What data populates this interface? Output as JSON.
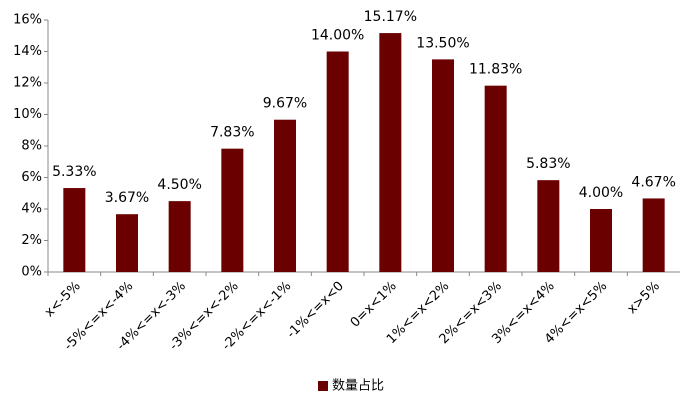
{
  "chart_data": {
    "type": "bar",
    "categories": [
      "x<-5%",
      "-5%<=x<-4%",
      "-4%<=x<-3%",
      "-3%<=x<-2%",
      "-2%<=x<-1%",
      "-1%<=x<0",
      "0=x<1%",
      "1%<=x<2%",
      "2%<=x<3%",
      "3%<=x<4%",
      "4%<=x<5%",
      "x>5%"
    ],
    "series": [
      {
        "name": "数量占比",
        "color": "#6b0000",
        "values": [
          5.33,
          3.67,
          4.5,
          7.83,
          9.67,
          14.0,
          15.17,
          13.5,
          11.83,
          5.83,
          4.0,
          4.67
        ],
        "value_labels": [
          "5.33%",
          "3.67%",
          "4.50%",
          "7.83%",
          "9.67%",
          "14.00%",
          "15.17%",
          "13.50%",
          "11.83%",
          "5.83%",
          "4.00%",
          "4.67%"
        ]
      }
    ],
    "ylim": [
      0,
      16
    ],
    "yticks": [
      {
        "value": 0,
        "label": "0%"
      },
      {
        "value": 2,
        "label": "2%"
      },
      {
        "value": 4,
        "label": "4%"
      },
      {
        "value": 6,
        "label": "6%"
      },
      {
        "value": 8,
        "label": "8%"
      },
      {
        "value": 10,
        "label": "10%"
      },
      {
        "value": 12,
        "label": "12%"
      },
      {
        "value": 14,
        "label": "14%"
      },
      {
        "value": 16,
        "label": "16%"
      }
    ],
    "grid": false,
    "legend": "bottom"
  }
}
